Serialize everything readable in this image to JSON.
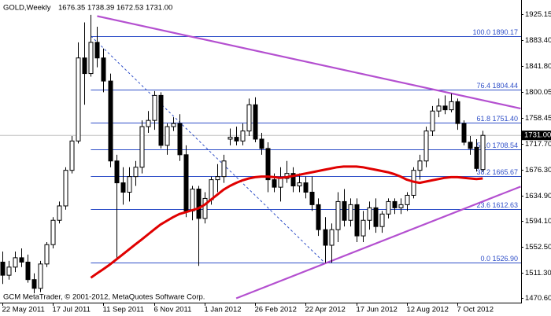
{
  "chart_data": {
    "type": "candlestick",
    "title": "GOLD,Weekly",
    "ohlc_label": "1676.35 1738.39 1672.53 1731.00",
    "footer": "GCM MetaTrader, © 2001-2012, MetaQuotes Software Corp.",
    "x": [
      "22 May 2011",
      null,
      null,
      null,
      null,
      null,
      null,
      null,
      "17 Jul 2011",
      null,
      null,
      null,
      null,
      null,
      null,
      null,
      "11 Sep 2011",
      null,
      null,
      null,
      null,
      null,
      null,
      null,
      "6 Nov 2011",
      null,
      null,
      null,
      null,
      null,
      null,
      null,
      "1 Jan 2012",
      null,
      null,
      null,
      null,
      null,
      null,
      null,
      "26 Feb 2012",
      null,
      null,
      null,
      null,
      null,
      null,
      null,
      "22 Apr 2012",
      null,
      null,
      null,
      null,
      null,
      null,
      null,
      "17 Jun 2012",
      null,
      null,
      null,
      null,
      null,
      null,
      null,
      "12 Aug 2012",
      null,
      null,
      null,
      null,
      null,
      null,
      null,
      "7 Oct 2012",
      null,
      null,
      null,
      null
    ],
    "open": [
      1528,
      1507,
      1520,
      1535,
      1528,
      1500,
      1486,
      1525,
      1556,
      1595,
      1618,
      1675,
      1722,
      1855,
      1830,
      1880,
      1855,
      1818,
      1690,
      1655,
      1640,
      1665,
      1680,
      1745,
      1755,
      1795,
      1715,
      1745,
      1750,
      1700,
      1610,
      1645,
      1598,
      1628,
      1660,
      1665,
      1725,
      1728,
      1722,
      1738,
      1780,
      1725,
      1710,
      1660,
      1648,
      1662,
      1670,
      1650,
      1655,
      1640,
      1620,
      1580,
      1555,
      1580,
      1625,
      1595,
      1620,
      1570,
      1595,
      1615,
      1585,
      1605,
      1625,
      1615,
      1620,
      1635,
      1675,
      1690,
      1738,
      1770,
      1778,
      1772,
      1785,
      1750,
      1720,
      1712,
      1676.35
    ],
    "high": [
      1545,
      1530,
      1545,
      1550,
      1540,
      1510,
      1530,
      1560,
      1600,
      1625,
      1680,
      1730,
      1880,
      1912,
      1924,
      1905,
      1870,
      1830,
      1700,
      1680,
      1680,
      1690,
      1755,
      1770,
      1802,
      1800,
      1750,
      1760,
      1765,
      1715,
      1650,
      1650,
      1640,
      1665,
      1685,
      1700,
      1742,
      1745,
      1750,
      1790,
      1792,
      1735,
      1720,
      1670,
      1680,
      1690,
      1680,
      1670,
      1665,
      1665,
      1630,
      1600,
      1590,
      1640,
      1645,
      1630,
      1630,
      1610,
      1625,
      1630,
      1610,
      1630,
      1630,
      1630,
      1640,
      1680,
      1700,
      1745,
      1778,
      1790,
      1795,
      1798,
      1790,
      1755,
      1730,
      1725,
      1738.39
    ],
    "low": [
      1493,
      1500,
      1512,
      1520,
      1495,
      1478,
      1480,
      1520,
      1550,
      1590,
      1612,
      1670,
      1718,
      1780,
      1825,
      1840,
      1800,
      1680,
      1532,
      1620,
      1625,
      1650,
      1670,
      1735,
      1740,
      1710,
      1700,
      1738,
      1690,
      1600,
      1595,
      1522,
      1590,
      1620,
      1640,
      1655,
      1715,
      1715,
      1715,
      1730,
      1720,
      1700,
      1640,
      1640,
      1625,
      1655,
      1640,
      1640,
      1630,
      1610,
      1570,
      1527,
      1527,
      1560,
      1585,
      1585,
      1560,
      1560,
      1580,
      1575,
      1575,
      1598,
      1605,
      1605,
      1610,
      1630,
      1660,
      1680,
      1730,
      1760,
      1765,
      1768,
      1740,
      1715,
      1700,
      1673,
      1672.53
    ],
    "close": [
      1507,
      1520,
      1535,
      1528,
      1500,
      1486,
      1525,
      1556,
      1595,
      1618,
      1675,
      1722,
      1855,
      1830,
      1880,
      1855,
      1818,
      1690,
      1655,
      1640,
      1665,
      1680,
      1745,
      1755,
      1795,
      1715,
      1745,
      1750,
      1700,
      1610,
      1645,
      1598,
      1630,
      1660,
      1665,
      1690,
      1728,
      1722,
      1738,
      1780,
      1725,
      1710,
      1660,
      1648,
      1662,
      1670,
      1650,
      1655,
      1640,
      1620,
      1580,
      1555,
      1580,
      1625,
      1595,
      1620,
      1570,
      1595,
      1615,
      1585,
      1605,
      1625,
      1615,
      1620,
      1635,
      1675,
      1690,
      1738,
      1770,
      1778,
      1772,
      1785,
      1750,
      1720,
      1710,
      1678,
      1731
    ],
    "up_color": "#ffffff",
    "down_color": "#000000",
    "series": [
      {
        "color": "#e00000",
        "values": [
          null,
          null,
          null,
          null,
          null,
          null,
          null,
          null,
          null,
          null,
          null,
          null,
          null,
          null,
          1503,
          1510,
          1517,
          1524,
          1532,
          1540,
          1548,
          1556,
          1564,
          1572,
          1580,
          1588,
          1594,
          1600,
          1605,
          1608,
          1611,
          1614,
          1620,
          1628,
          1636,
          1644,
          1650,
          1655,
          1659,
          1662,
          1664,
          1665,
          1665,
          1664,
          1663,
          1664,
          1666,
          1668,
          1670,
          1672,
          1674,
          1676,
          1678,
          1680,
          1681,
          1681,
          1681,
          1680,
          1678,
          1676,
          1674,
          1672,
          1669,
          1665,
          1660,
          1657,
          1655,
          1657,
          1659,
          1661,
          1663,
          1664,
          1664,
          1663,
          1662,
          1661,
          1662
        ]
      }
    ],
    "fib_color": "#2f4fc8",
    "fib_levels": [
      {
        "label": "100.0 1890.17",
        "value": 1890.17
      },
      {
        "label": "76.4 1804.44",
        "value": 1804.44
      },
      {
        "label": "61.8 1751.40",
        "value": 1751.4
      },
      {
        "label": "50.0 1708.54",
        "value": 1708.54
      },
      {
        "label": "38.2 1665.67",
        "value": 1665.67
      },
      {
        "label": "23.6 1612.63",
        "value": 1612.63
      },
      {
        "label": "0.0 1526.90",
        "value": 1526.9
      }
    ],
    "trendlines": [
      {
        "color": "#b450d0",
        "dashed": false,
        "points": [
          [
            15,
            1922
          ],
          [
            82,
            1774
          ]
        ]
      },
      {
        "color": "#b450d0",
        "dashed": false,
        "points": [
          [
            37,
            1470
          ],
          [
            82,
            1649
          ]
        ]
      },
      {
        "color": "#2f4fc8",
        "dashed": true,
        "points": [
          [
            14,
            1890.17
          ],
          [
            51,
            1526.9
          ]
        ]
      }
    ],
    "current_price": {
      "value": 1731,
      "label": "1731.00"
    },
    "ylim": [
      1463.1,
      1945.3
    ],
    "yticks": [
      1925.15,
      {
        "value": 1883.4,
        "label": "1883.40"
      },
      {
        "value": 1841.8,
        "label": "1841.80"
      },
      1800.05,
      1758.45,
      {
        "value": 1717.7,
        "label": "1717.70"
      },
      {
        "value": 1676.3,
        "label": "1676.30"
      },
      {
        "value": 1634.9,
        "label": "1634.90"
      },
      {
        "value": 1594.1,
        "label": "1594.10"
      },
      {
        "value": 1552.5,
        "label": "1552.50"
      },
      {
        "value": 1511.3,
        "label": "1511.30"
      },
      {
        "value": 1470.6,
        "label": "1470.60"
      }
    ]
  }
}
